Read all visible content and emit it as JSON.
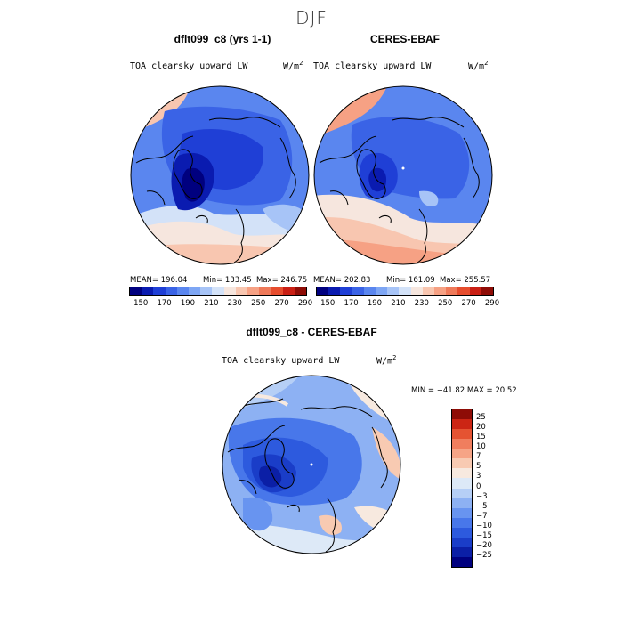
{
  "season": "DJF",
  "panels": [
    {
      "title": "dflt099_c8 (yrs 1-1)",
      "variable": "TOA clearsky upward LW",
      "units": "W/m",
      "units_sup": "2",
      "mean_label": "MEAN= 196.04",
      "min_label": "Min= 133.45",
      "max_label": "Max= 246.75"
    },
    {
      "title": "CERES-EBAF",
      "variable": "TOA clearsky upward LW",
      "units": "W/m",
      "units_sup": "2",
      "mean_label": "MEAN= 202.83",
      "min_label": "Min= 161.09",
      "max_label": "Max= 255.57"
    }
  ],
  "diff_panel": {
    "title": "dflt099_c8 - CERES-EBAF",
    "variable": "TOA clearsky upward LW",
    "units": "W/m",
    "units_sup": "2",
    "minmax_label": "MIN = −41.82 MAX =  20.52"
  },
  "abs_colorbar": {
    "colors": [
      "#00007f",
      "#0a1bb0",
      "#1f3fd6",
      "#3a63e6",
      "#5a86ef",
      "#7ea6f4",
      "#a7c4f7",
      "#d3e2f8",
      "#f6e6de",
      "#f8c6b0",
      "#f6a184",
      "#ef7a5a",
      "#e64d2e",
      "#c91f14",
      "#8e0c06"
    ],
    "tick_labels": [
      "150",
      "170",
      "190",
      "210",
      "230",
      "250",
      "270",
      "290"
    ]
  },
  "diff_colorbar": {
    "colors": [
      "#00007f",
      "#0b1fa6",
      "#1a3dc8",
      "#2d5ade",
      "#4877ea",
      "#6894f0",
      "#8db1f3",
      "#b6cff6",
      "#dde9f7",
      "#f7e9df",
      "#f8cab2",
      "#f6a486",
      "#f07e5e",
      "#e55332",
      "#cc2514",
      "#8e0c06"
    ],
    "tick_labels": [
      "25",
      "20",
      "15",
      "10",
      "7",
      "5",
      "3",
      "0",
      "−3",
      "−5",
      "−7",
      "−10",
      "−15",
      "−20",
      "−25"
    ]
  }
}
